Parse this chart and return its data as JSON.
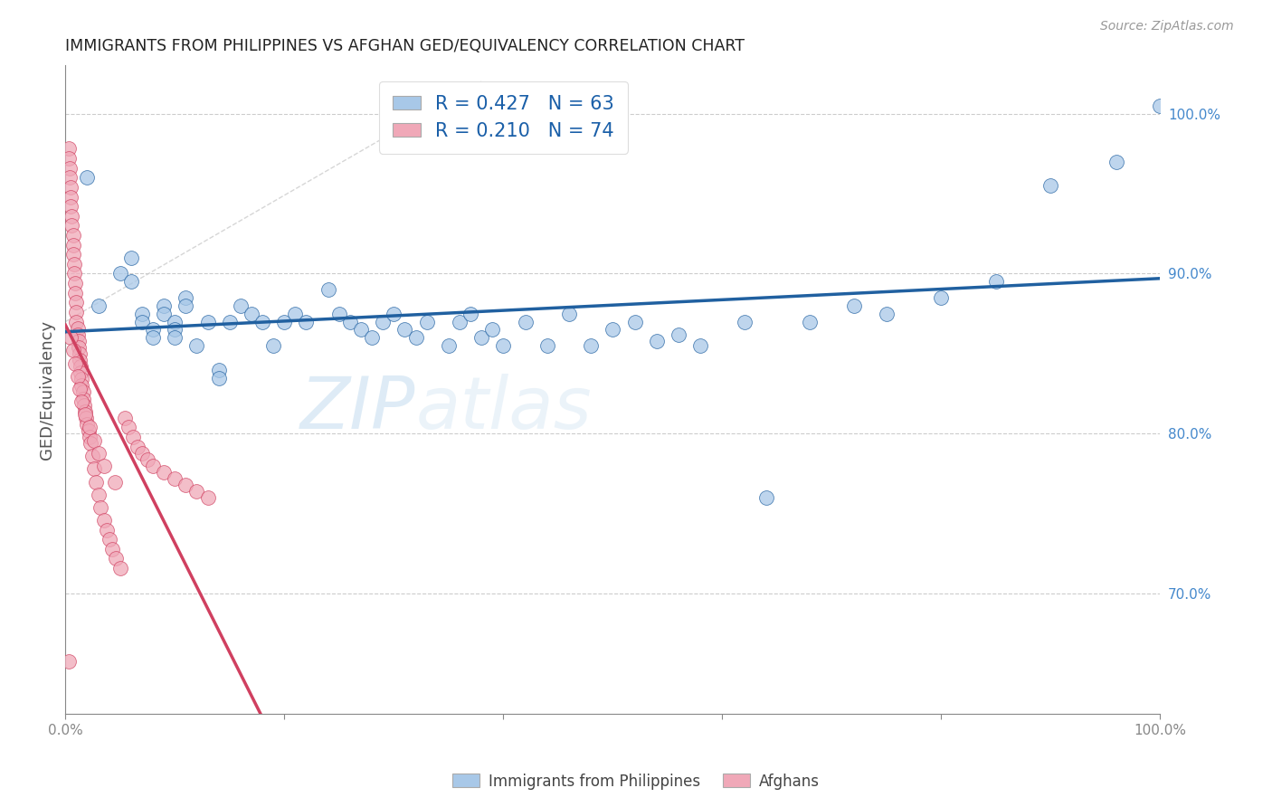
{
  "title": "IMMIGRANTS FROM PHILIPPINES VS AFGHAN GED/EQUIVALENCY CORRELATION CHART",
  "source": "Source: ZipAtlas.com",
  "ylabel": "GED/Equivalency",
  "ylabel_right_labels": [
    "100.0%",
    "90.0%",
    "80.0%",
    "70.0%"
  ],
  "ylabel_right_values": [
    1.0,
    0.9,
    0.8,
    0.7
  ],
  "xmin": 0.0,
  "xmax": 1.0,
  "ymin": 0.625,
  "ymax": 1.03,
  "R_blue": 0.427,
  "N_blue": 63,
  "R_pink": 0.21,
  "N_pink": 74,
  "legend_label_blue": "Immigrants from Philippines",
  "legend_label_pink": "Afghans",
  "blue_color": "#a8c8e8",
  "pink_color": "#f0a8b8",
  "blue_line_color": "#2060a0",
  "pink_line_color": "#d04060",
  "watermark_zip": "ZIP",
  "watermark_atlas": "atlas",
  "blue_x": [
    0.02,
    0.03,
    0.05,
    0.06,
    0.06,
    0.07,
    0.07,
    0.08,
    0.08,
    0.09,
    0.09,
    0.1,
    0.1,
    0.1,
    0.11,
    0.11,
    0.12,
    0.13,
    0.14,
    0.14,
    0.15,
    0.16,
    0.17,
    0.18,
    0.19,
    0.2,
    0.21,
    0.22,
    0.24,
    0.25,
    0.26,
    0.27,
    0.28,
    0.29,
    0.3,
    0.31,
    0.32,
    0.33,
    0.35,
    0.36,
    0.37,
    0.38,
    0.39,
    0.4,
    0.42,
    0.44,
    0.46,
    0.48,
    0.5,
    0.52,
    0.54,
    0.56,
    0.58,
    0.62,
    0.64,
    0.68,
    0.72,
    0.75,
    0.8,
    0.85,
    0.9,
    0.96,
    1.0
  ],
  "blue_y": [
    0.96,
    0.88,
    0.9,
    0.895,
    0.91,
    0.875,
    0.87,
    0.865,
    0.86,
    0.88,
    0.875,
    0.87,
    0.865,
    0.86,
    0.885,
    0.88,
    0.855,
    0.87,
    0.84,
    0.835,
    0.87,
    0.88,
    0.875,
    0.87,
    0.855,
    0.87,
    0.875,
    0.87,
    0.89,
    0.875,
    0.87,
    0.865,
    0.86,
    0.87,
    0.875,
    0.865,
    0.86,
    0.87,
    0.855,
    0.87,
    0.875,
    0.86,
    0.865,
    0.855,
    0.87,
    0.855,
    0.875,
    0.855,
    0.865,
    0.87,
    0.858,
    0.862,
    0.855,
    0.87,
    0.76,
    0.87,
    0.88,
    0.875,
    0.885,
    0.895,
    0.955,
    0.97,
    1.005
  ],
  "pink_x": [
    0.003,
    0.003,
    0.004,
    0.004,
    0.005,
    0.005,
    0.005,
    0.006,
    0.006,
    0.007,
    0.007,
    0.007,
    0.008,
    0.008,
    0.009,
    0.009,
    0.01,
    0.01,
    0.01,
    0.011,
    0.011,
    0.012,
    0.012,
    0.013,
    0.013,
    0.014,
    0.014,
    0.015,
    0.015,
    0.016,
    0.016,
    0.017,
    0.018,
    0.019,
    0.02,
    0.021,
    0.022,
    0.023,
    0.025,
    0.026,
    0.028,
    0.03,
    0.032,
    0.035,
    0.038,
    0.04,
    0.043,
    0.046,
    0.05,
    0.054,
    0.058,
    0.062,
    0.066,
    0.07,
    0.075,
    0.08,
    0.09,
    0.1,
    0.11,
    0.12,
    0.13,
    0.003,
    0.005,
    0.007,
    0.009,
    0.011,
    0.013,
    0.015,
    0.018,
    0.022,
    0.026,
    0.03,
    0.035,
    0.045
  ],
  "pink_y": [
    0.978,
    0.972,
    0.966,
    0.96,
    0.954,
    0.948,
    0.942,
    0.936,
    0.93,
    0.924,
    0.918,
    0.912,
    0.906,
    0.9,
    0.894,
    0.888,
    0.882,
    0.876,
    0.87,
    0.866,
    0.862,
    0.858,
    0.854,
    0.85,
    0.846,
    0.842,
    0.838,
    0.834,
    0.83,
    0.826,
    0.822,
    0.818,
    0.814,
    0.81,
    0.806,
    0.802,
    0.798,
    0.794,
    0.786,
    0.778,
    0.77,
    0.762,
    0.754,
    0.746,
    0.74,
    0.734,
    0.728,
    0.722,
    0.716,
    0.81,
    0.804,
    0.798,
    0.792,
    0.788,
    0.784,
    0.78,
    0.776,
    0.772,
    0.768,
    0.764,
    0.76,
    0.658,
    0.86,
    0.852,
    0.844,
    0.836,
    0.828,
    0.82,
    0.812,
    0.804,
    0.796,
    0.788,
    0.78,
    0.77
  ]
}
